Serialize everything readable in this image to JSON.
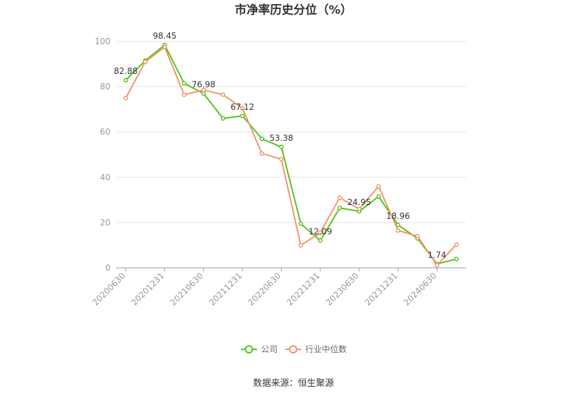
{
  "chart_data": {
    "type": "line",
    "title": "市净率历史分位（%）",
    "x": [
      "20200630",
      "20200930",
      "20201231",
      "20210331",
      "20210630",
      "20210930",
      "20211231",
      "20220331",
      "20220630",
      "20220930",
      "20221231",
      "20230331",
      "20230630",
      "20230930",
      "20231231",
      "20240331",
      "20240630",
      "20240930"
    ],
    "x_tick_labels": [
      "20200630",
      "20201231",
      "20210630",
      "20211231",
      "20220630",
      "20221231",
      "20230630",
      "20231231",
      "20240630"
    ],
    "series": [
      {
        "name": "公司",
        "color": "#52c41a",
        "values": [
          82.88,
          91.5,
          98.45,
          81.5,
          76.98,
          66.0,
          67.12,
          57.0,
          53.38,
          19.5,
          12.09,
          26.5,
          24.95,
          31.5,
          18.96,
          13.0,
          1.74,
          3.9
        ],
        "labels": {
          "0": "82.88",
          "2": "98.45",
          "4": "76.98",
          "6": "67.12",
          "8": "53.38",
          "10": "12.09",
          "12": "24.95",
          "14": "18.96",
          "16": "1.74"
        }
      },
      {
        "name": "行业中位数",
        "color": "#f5936b",
        "values": [
          75.0,
          91.0,
          97.5,
          76.5,
          78.5,
          76.5,
          70.5,
          50.5,
          48.0,
          10.0,
          15.5,
          31.0,
          26.0,
          36.0,
          16.5,
          14.0,
          1.2,
          10.3
        ]
      }
    ],
    "y_ticks": [
      0,
      20,
      40,
      60,
      80,
      100
    ],
    "ylim": [
      0,
      100
    ],
    "grid": true,
    "legend_position": "bottom-center"
  },
  "source": "数据来源：恒生聚源"
}
